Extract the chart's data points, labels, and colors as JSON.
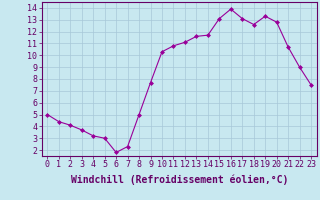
{
  "x": [
    0,
    1,
    2,
    3,
    4,
    5,
    6,
    7,
    8,
    9,
    10,
    11,
    12,
    13,
    14,
    15,
    16,
    17,
    18,
    19,
    20,
    21,
    22,
    23
  ],
  "y": [
    5.0,
    4.4,
    4.1,
    3.7,
    3.2,
    3.0,
    1.8,
    2.3,
    5.0,
    7.7,
    10.3,
    10.8,
    11.1,
    11.6,
    11.7,
    13.1,
    13.9,
    13.1,
    12.6,
    13.3,
    12.8,
    10.7,
    9.0,
    7.5
  ],
  "line_color": "#990099",
  "marker": "D",
  "marker_size": 2.0,
  "background_color": "#c8e8f0",
  "grid_color": "#a8c8d8",
  "xlabel": "Windchill (Refroidissement éolien,°C)",
  "ylim": [
    1.5,
    14.5
  ],
  "xlim": [
    -0.5,
    23.5
  ],
  "yticks": [
    2,
    3,
    4,
    5,
    6,
    7,
    8,
    9,
    10,
    11,
    12,
    13,
    14
  ],
  "xticks": [
    0,
    1,
    2,
    3,
    4,
    5,
    6,
    7,
    8,
    9,
    10,
    11,
    12,
    13,
    14,
    15,
    16,
    17,
    18,
    19,
    20,
    21,
    22,
    23
  ],
  "tick_color": "#660066",
  "label_color": "#660066",
  "xlabel_fontsize": 7.0,
  "tick_fontsize": 6.0,
  "spine_color": "#660066"
}
